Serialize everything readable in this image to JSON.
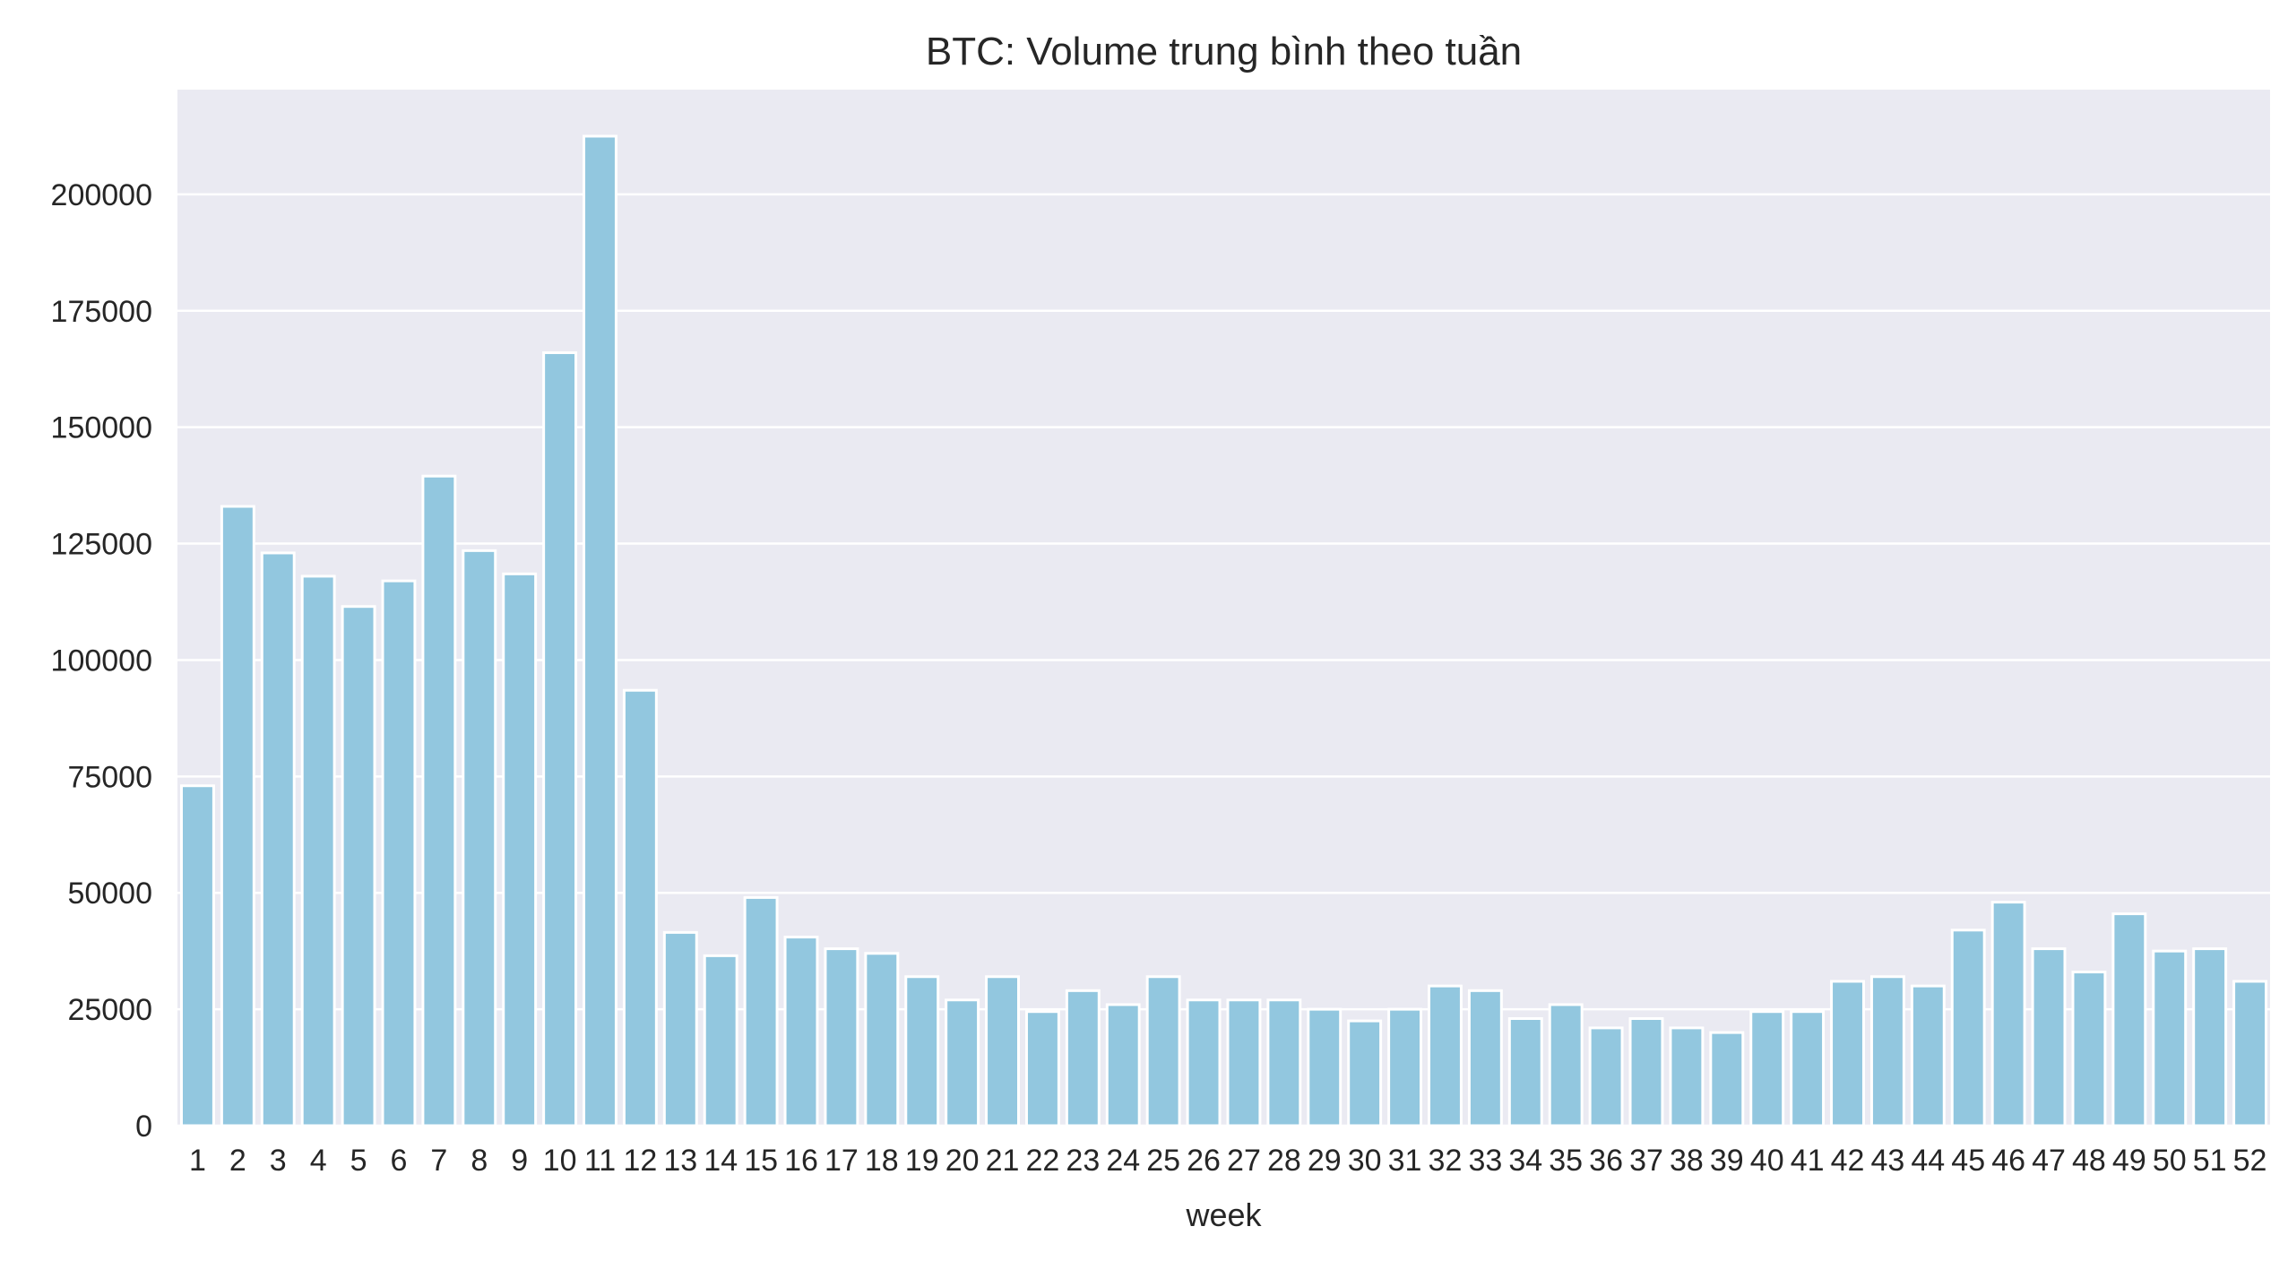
{
  "chart_data": {
    "type": "bar",
    "title": "BTC: Volume trung bình theo tuần",
    "xlabel": "week",
    "ylabel": "",
    "ylim": [
      0,
      222500
    ],
    "yticks": [
      0,
      25000,
      50000,
      75000,
      100000,
      125000,
      150000,
      175000,
      200000
    ],
    "ytick_labels": [
      "0",
      "25000",
      "50000",
      "75000",
      "100000",
      "125000",
      "150000",
      "175000",
      "200000"
    ],
    "grid": true,
    "bar_color": "#92c7df",
    "background_color": "#eaeaf2",
    "grid_color": "#ffffff",
    "categories": [
      "1",
      "2",
      "3",
      "4",
      "5",
      "6",
      "7",
      "8",
      "9",
      "10",
      "11",
      "12",
      "13",
      "14",
      "15",
      "16",
      "17",
      "18",
      "19",
      "20",
      "21",
      "22",
      "23",
      "24",
      "25",
      "26",
      "27",
      "28",
      "29",
      "30",
      "31",
      "32",
      "33",
      "34",
      "35",
      "36",
      "37",
      "38",
      "39",
      "40",
      "41",
      "42",
      "43",
      "44",
      "45",
      "46",
      "47",
      "48",
      "49",
      "50",
      "51",
      "52"
    ],
    "values": [
      73000,
      133000,
      123000,
      118000,
      111500,
      117000,
      139500,
      123500,
      118500,
      166000,
      212500,
      93500,
      41500,
      36500,
      49000,
      40500,
      38000,
      37000,
      32000,
      27000,
      32000,
      24500,
      29000,
      26000,
      32000,
      27000,
      27000,
      27000,
      25000,
      22500,
      25000,
      30000,
      29000,
      23000,
      26000,
      21000,
      23000,
      21000,
      20000,
      24500,
      24500,
      31000,
      32000,
      30000,
      42000,
      48000,
      38000,
      33000,
      45500,
      37500,
      38000,
      31000
    ]
  }
}
